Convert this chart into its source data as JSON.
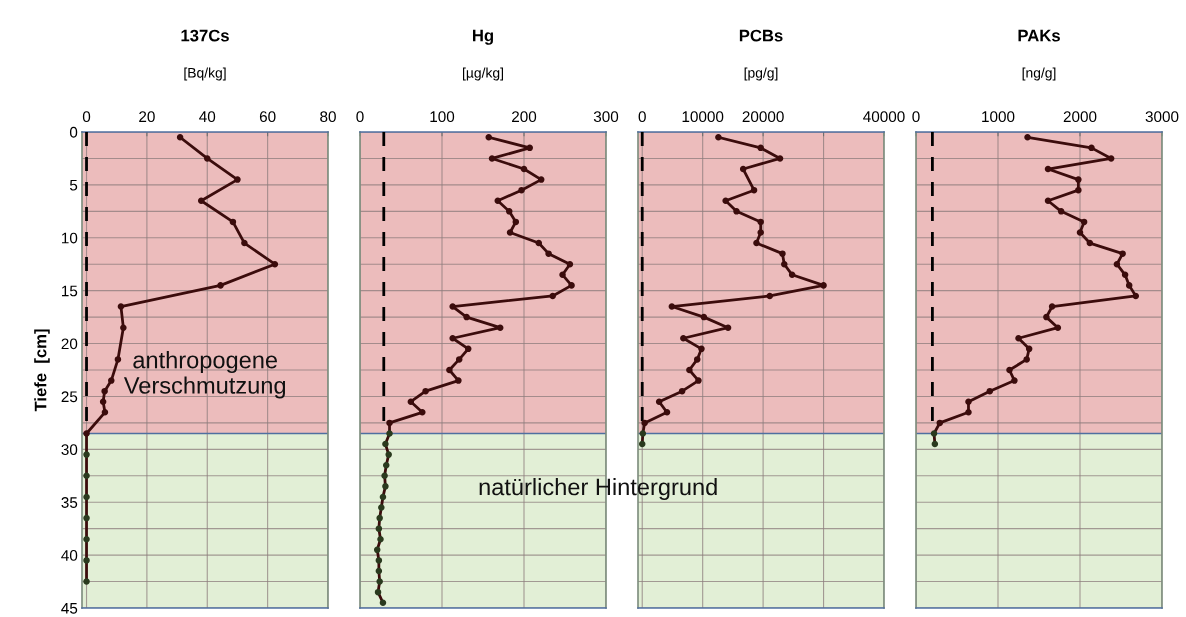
{
  "chart_data": [
    {
      "type": "line",
      "title": "137Cs",
      "subtitle": "[Bq/kg]",
      "ylabel": "Tiefe  [cm]",
      "xlim": [
        -1.5,
        80
      ],
      "xticks": [
        0,
        20,
        40,
        60,
        80
      ],
      "ylim": [
        45,
        0
      ],
      "yticks": [
        0,
        {
          "value": 2.5,
          "label": null
        },
        5,
        {
          "value": 7.5,
          "label": null
        },
        10,
        {
          "value": 12.5,
          "label": null
        },
        15,
        {
          "value": 17.5,
          "label": null
        },
        20,
        {
          "value": 22.5,
          "label": null
        },
        25,
        {
          "value": 27.5,
          "label": null
        },
        30,
        {
          "value": 32.5,
          "label": null
        },
        35,
        {
          "value": 37.5,
          "label": null
        },
        40,
        {
          "value": 42.5,
          "label": null
        },
        45
      ],
      "grid": true,
      "marker": "circle",
      "bands": [
        {
          "axis": "y",
          "from": 0,
          "to": 28.5,
          "color": "#ecbcbc"
        },
        {
          "axis": "y",
          "from": 28.5,
          "to": 45,
          "color": "#e2efd6"
        }
      ],
      "annotations": [
        "anthropogene\nVerschmutzung"
      ],
      "ref_lines": [
        {
          "axis": "y",
          "value": 28.5,
          "color": "#4f6fa0"
        }
      ],
      "series": [
        {
          "color": "#3b0c0c",
          "x": [
            31,
            40,
            50,
            38,
            48.5,
            52.3,
            62.4,
            44.4,
            11.4,
            12.2,
            10.4,
            8.2,
            6,
            5.5,
            6.1,
            0,
            0,
            0,
            0,
            0,
            0,
            0,
            0
          ],
          "values": [
            0.5,
            2.5,
            4.5,
            6.5,
            8.5,
            10.5,
            12.5,
            14.5,
            16.5,
            18.5,
            21.5,
            23.5,
            24.5,
            25.5,
            26.5,
            28.5,
            30.5,
            32.5,
            34.5,
            36.5,
            38.5,
            40.5,
            42.5
          ],
          "colors": [
            "#3b0c0c",
            "#3b0c0c",
            "#3b0c0c",
            "#3b0c0c",
            "#3b0c0c",
            "#3b0c0c",
            "#3b0c0c",
            "#3b0c0c",
            "#3b0c0c",
            "#3b0c0c",
            "#3b0c0c",
            "#3b0c0c",
            "#3b0c0c",
            "#3b0c0c",
            "#3b0c0c",
            "#3b0c0c",
            "#2a3a1e",
            "#2a3a1e",
            "#2a3a1e",
            "#2a3a1e",
            "#2a3a1e",
            "#2a3a1e",
            "#2a3a1e"
          ]
        },
        {
          "type": "line",
          "line_style": "dashed",
          "marker": "none",
          "color": "#000000",
          "x": [
            0,
            0
          ],
          "values": [
            0,
            28.5
          ]
        }
      ]
    },
    {
      "type": "line",
      "title": "Hg",
      "subtitle": "[µg/kg]",
      "xlim": [
        0,
        300
      ],
      "xticks": [
        0,
        100,
        200,
        300
      ],
      "ylim": [
        45,
        0
      ],
      "yticks": [
        0,
        {
          "value": 2.5,
          "label": null
        },
        5,
        {
          "value": 7.5,
          "label": null
        },
        10,
        {
          "value": 12.5,
          "label": null
        },
        15,
        {
          "value": 17.5,
          "label": null
        },
        20,
        {
          "value": 22.5,
          "label": null
        },
        25,
        {
          "value": 27.5,
          "label": null
        },
        30,
        {
          "value": 32.5,
          "label": null
        },
        35,
        {
          "value": 37.5,
          "label": null
        },
        40,
        {
          "value": 42.5,
          "label": null
        },
        45
      ],
      "tick_labels": "x",
      "grid": true,
      "marker": "circle",
      "bands": [
        {
          "axis": "y",
          "from": 0,
          "to": 28.5,
          "color": "#ecbcbc"
        },
        {
          "axis": "y",
          "from": 28.5,
          "to": 45,
          "color": "#e2efd6"
        }
      ],
      "annotations": [
        "natürlicher Hintergrund"
      ],
      "ref_lines": [
        {
          "axis": "y",
          "value": 28.5,
          "color": "#4f6fa0"
        }
      ],
      "series": [
        {
          "color": "#3b0c0c",
          "x": [
            157,
            207,
            161,
            200,
            221,
            197,
            168,
            182,
            190,
            183,
            218,
            230,
            256,
            247,
            258,
            235,
            113,
            130,
            171,
            113,
            132,
            121,
            109,
            120,
            80,
            62,
            76,
            36,
            36,
            31,
            35,
            32,
            30,
            31,
            28,
            26,
            24,
            23,
            25,
            21,
            23,
            23,
            24,
            22,
            28
          ],
          "values": [
            0.5,
            1.5,
            2.5,
            3.5,
            4.5,
            5.5,
            6.5,
            7.5,
            8.5,
            9.5,
            10.5,
            11.5,
            12.5,
            13.5,
            14.5,
            15.5,
            16.5,
            17.5,
            18.5,
            19.5,
            20.5,
            21.5,
            22.5,
            23.5,
            24.5,
            25.5,
            26.5,
            27.5,
            28.5,
            29.5,
            30.5,
            31.5,
            32.5,
            33.5,
            34.5,
            35.5,
            36.5,
            37.5,
            38.5,
            39.5,
            40.5,
            41.5,
            42.5,
            43.5,
            44.5
          ],
          "colors": [
            "#3b0c0c",
            "#3b0c0c",
            "#3b0c0c",
            "#3b0c0c",
            "#3b0c0c",
            "#3b0c0c",
            "#3b0c0c",
            "#3b0c0c",
            "#3b0c0c",
            "#3b0c0c",
            "#3b0c0c",
            "#3b0c0c",
            "#3b0c0c",
            "#3b0c0c",
            "#3b0c0c",
            "#3b0c0c",
            "#3b0c0c",
            "#3b0c0c",
            "#3b0c0c",
            "#3b0c0c",
            "#3b0c0c",
            "#3b0c0c",
            "#3b0c0c",
            "#3b0c0c",
            "#3b0c0c",
            "#3b0c0c",
            "#3b0c0c",
            "#3b0c0c",
            "#2a3a1e",
            "#2a3a1e",
            "#2a3a1e",
            "#2a3a1e",
            "#2a3a1e",
            "#2a3a1e",
            "#2a3a1e",
            "#2a3a1e",
            "#2a3a1e",
            "#2a3a1e",
            "#2a3a1e",
            "#2a3a1e",
            "#2a3a1e",
            "#2a3a1e",
            "#2a3a1e",
            "#2a3a1e",
            "#2a3a1e"
          ]
        },
        {
          "type": "line",
          "line_style": "dashed",
          "marker": "none",
          "color": "#000000",
          "x": [
            29,
            29
          ],
          "values": [
            0,
            27.5
          ]
        }
      ]
    },
    {
      "type": "line",
      "title": "PCBs",
      "subtitle": "[pg/g]",
      "xlim": [
        -700,
        40000
      ],
      "ref_lines": [
        {
          "axis": "y",
          "value": 28.5,
          "color": "#4f6fa0"
        }
      ],
      "xticks": [
        0,
        10000,
        20000,
        {
          "value": 30000,
          "label": null
        },
        40000
      ],
      "ylim": [
        45,
        0
      ],
      "yticks": [
        0,
        {
          "value": 2.5,
          "label": null
        },
        5,
        {
          "value": 7.5,
          "label": null
        },
        10,
        {
          "value": 12.5,
          "label": null
        },
        15,
        {
          "value": 17.5,
          "label": null
        },
        20,
        {
          "value": 22.5,
          "label": null
        },
        25,
        {
          "value": 27.5,
          "label": null
        },
        30,
        {
          "value": 32.5,
          "label": null
        },
        35,
        {
          "value": 37.5,
          "label": null
        },
        40,
        {
          "value": 42.5,
          "label": null
        },
        45
      ],
      "tick_labels": "x",
      "grid": true,
      "marker": "circle",
      "bands": [
        {
          "axis": "y",
          "from": 0,
          "to": 28.5,
          "color": "#ecbcbc"
        },
        {
          "axis": "y",
          "from": 28.5,
          "to": 45,
          "color": "#e2efd6"
        }
      ],
      "series": [
        {
          "color": "#3b0c0c",
          "x": [
            12600,
            19600,
            22800,
            16700,
            18500,
            13800,
            15600,
            19600,
            19600,
            18900,
            23200,
            23500,
            24800,
            30000,
            21100,
            4900,
            10200,
            14200,
            6800,
            9800,
            9100,
            7800,
            9300,
            6600,
            2800,
            4100,
            400,
            100,
            0
          ],
          "values": [
            0.5,
            1.5,
            2.5,
            3.5,
            5.5,
            6.5,
            7.5,
            8.5,
            9.5,
            10.5,
            11.5,
            12.5,
            13.5,
            14.5,
            15.5,
            16.5,
            17.5,
            18.5,
            19.5,
            20.5,
            21.5,
            22.5,
            23.5,
            24.5,
            25.5,
            26.5,
            27.5,
            28.5,
            29.5
          ],
          "colors": [
            "#3b0c0c",
            "#3b0c0c",
            "#3b0c0c",
            "#3b0c0c",
            "#3b0c0c",
            "#3b0c0c",
            "#3b0c0c",
            "#3b0c0c",
            "#3b0c0c",
            "#3b0c0c",
            "#3b0c0c",
            "#3b0c0c",
            "#3b0c0c",
            "#3b0c0c",
            "#3b0c0c",
            "#3b0c0c",
            "#3b0c0c",
            "#3b0c0c",
            "#3b0c0c",
            "#3b0c0c",
            "#3b0c0c",
            "#3b0c0c",
            "#3b0c0c",
            "#3b0c0c",
            "#3b0c0c",
            "#3b0c0c",
            "#3b0c0c",
            "#2a3a1e",
            "#2a3a1e"
          ]
        },
        {
          "type": "line",
          "line_style": "dashed",
          "marker": "none",
          "color": "#000000",
          "x": [
            0,
            0
          ],
          "values": [
            0,
            27.5
          ]
        }
      ]
    },
    {
      "type": "line",
      "title": "PAKs",
      "subtitle": "[ng/g]",
      "xlim": [
        0,
        3000
      ],
      "ref_lines": [
        {
          "axis": "y",
          "value": 28.5,
          "color": "#4f6fa0"
        }
      ],
      "xticks": [
        0,
        1000,
        2000,
        3000
      ],
      "ylim": [
        45,
        0
      ],
      "yticks": [
        0,
        {
          "value": 2.5,
          "label": null
        },
        5,
        {
          "value": 7.5,
          "label": null
        },
        10,
        {
          "value": 12.5,
          "label": null
        },
        15,
        {
          "value": 17.5,
          "label": null
        },
        20,
        {
          "value": 22.5,
          "label": null
        },
        25,
        {
          "value": 27.5,
          "label": null
        },
        30,
        {
          "value": 32.5,
          "label": null
        },
        35,
        {
          "value": 37.5,
          "label": null
        },
        40,
        {
          "value": 42.5,
          "label": null
        },
        45
      ],
      "tick_labels": "x",
      "grid": true,
      "marker": "circle",
      "bands": [
        {
          "axis": "y",
          "from": 0,
          "to": 28.5,
          "color": "#ecbcbc"
        },
        {
          "axis": "y",
          "from": 28.5,
          "to": 45,
          "color": "#e2efd6"
        }
      ],
      "series": [
        {
          "color": "#3b0c0c",
          "x": [
            1360,
            2140,
            2380,
            1610,
            1980,
            1980,
            1610,
            1770,
            2050,
            2000,
            2120,
            2520,
            2450,
            2550,
            2600,
            2680,
            1660,
            1590,
            1730,
            1250,
            1380,
            1350,
            1140,
            1200,
            900,
            640,
            640,
            290,
            220,
            230
          ],
          "values": [
            0.5,
            1.5,
            2.5,
            3.5,
            4.5,
            5.5,
            6.5,
            7.5,
            8.5,
            9.5,
            10.5,
            11.5,
            12.5,
            13.5,
            14.5,
            15.5,
            16.5,
            17.5,
            18.5,
            19.5,
            20.5,
            21.5,
            22.5,
            23.5,
            24.5,
            25.5,
            26.5,
            27.5,
            28.5,
            29.5
          ],
          "colors": [
            "#3b0c0c",
            "#3b0c0c",
            "#3b0c0c",
            "#3b0c0c",
            "#3b0c0c",
            "#3b0c0c",
            "#3b0c0c",
            "#3b0c0c",
            "#3b0c0c",
            "#3b0c0c",
            "#3b0c0c",
            "#3b0c0c",
            "#3b0c0c",
            "#3b0c0c",
            "#3b0c0c",
            "#3b0c0c",
            "#3b0c0c",
            "#3b0c0c",
            "#3b0c0c",
            "#3b0c0c",
            "#3b0c0c",
            "#3b0c0c",
            "#3b0c0c",
            "#3b0c0c",
            "#3b0c0c",
            "#3b0c0c",
            "#3b0c0c",
            "#3b0c0c",
            "#2a3a1e",
            "#2a3a1e"
          ]
        },
        {
          "type": "line",
          "line_style": "dashed",
          "marker": "none",
          "color": "#000000",
          "x": [
            200,
            200
          ],
          "values": [
            0,
            27.5
          ]
        }
      ]
    }
  ]
}
